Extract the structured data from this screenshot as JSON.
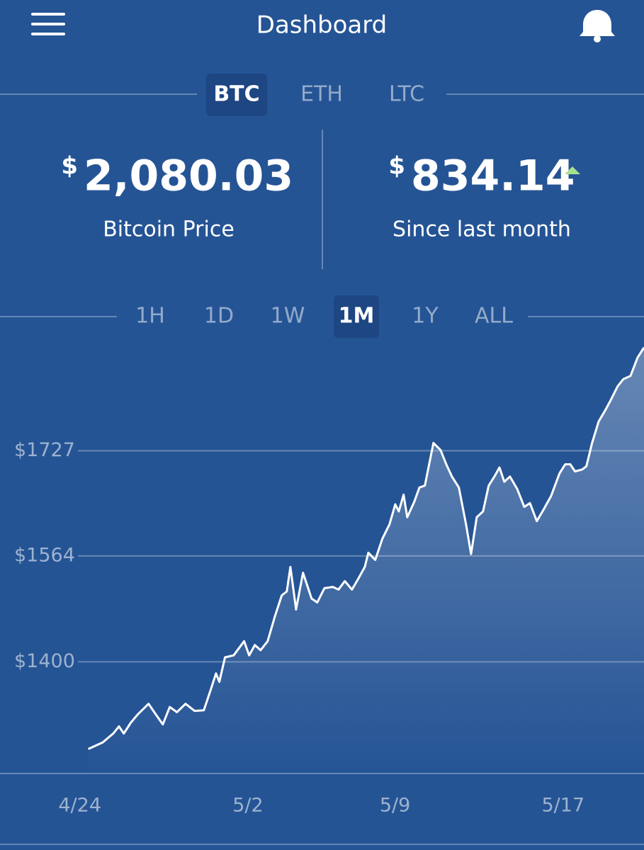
{
  "header": {
    "title": "Dashboard"
  },
  "currency_tabs": {
    "items": [
      "BTC",
      "ETH",
      "LTC"
    ],
    "selected_index": 0
  },
  "stats": [
    {
      "currency": "$",
      "value": "2,080.03",
      "label": "Bitcoin Price"
    },
    {
      "currency": "$",
      "value": "834.14",
      "label": "Since last month"
    }
  ],
  "range_tabs": {
    "items": [
      "1H",
      "1D",
      "1W",
      "1M",
      "1Y",
      "ALL"
    ],
    "selected_index": 3
  },
  "chart_data": {
    "type": "line",
    "color": "#ffffff",
    "grid": true,
    "x": [
      0.4,
      1.08,
      1.59,
      1.86,
      2.09,
      2.43,
      2.77,
      3.27,
      3.54,
      3.95,
      4.28,
      4.62,
      5.03,
      5.46,
      5.9,
      6.24,
      6.48,
      6.64,
      6.91,
      7.32,
      7.82,
      8.06,
      8.33,
      8.6,
      8.94,
      9.28,
      9.61,
      9.85,
      10.02,
      10.29,
      10.62,
      11.03,
      11.3,
      11.64,
      12.04,
      12.31,
      12.61,
      12.95,
      13.22,
      13.56,
      13.73,
      14.06,
      14.4,
      14.74,
      15.01,
      15.18,
      15.41,
      15.58,
      15.92,
      16.16,
      16.42,
      16.83,
      17.17,
      17.44,
      17.71,
      18.04,
      18.38,
      18.62,
      18.89,
      19.19,
      19.46,
      19.73,
      19.97,
      20.2,
      20.47,
      20.81,
      21.15,
      21.42,
      21.75,
      22.09,
      22.43,
      22.83,
      23.1,
      23.34,
      23.57,
      23.91,
      24.11,
      24.38,
      24.69,
      25.03,
      25.26,
      25.6,
      25.87,
      26.21,
      26.54,
      26.85
    ],
    "values": [
      1265,
      1275,
      1289,
      1300,
      1289,
      1306,
      1319,
      1335,
      1322,
      1303,
      1330,
      1322,
      1335,
      1324,
      1325,
      1358,
      1382,
      1369,
      1407,
      1410,
      1432,
      1410,
      1426,
      1418,
      1432,
      1470,
      1503,
      1509,
      1547,
      1481,
      1538,
      1498,
      1492,
      1514,
      1516,
      1512,
      1525,
      1512,
      1527,
      1547,
      1569,
      1558,
      1591,
      1613,
      1644,
      1633,
      1659,
      1624,
      1648,
      1670,
      1673,
      1739,
      1728,
      1706,
      1687,
      1670,
      1613,
      1567,
      1624,
      1633,
      1673,
      1687,
      1701,
      1679,
      1687,
      1668,
      1640,
      1646,
      1618,
      1637,
      1657,
      1692,
      1706,
      1706,
      1695,
      1698,
      1703,
      1739,
      1772,
      1791,
      1805,
      1827,
      1838,
      1843,
      1871,
      1887
    ],
    "xlim": [
      -3.8,
      26.85
    ],
    "xticks": [
      {
        "value": 0,
        "label": "4/24"
      },
      {
        "value": 8,
        "label": "5/2"
      },
      {
        "value": 15,
        "label": "5/9"
      },
      {
        "value": 23,
        "label": "5/17"
      }
    ],
    "ylim": [
      1227,
      1898
    ],
    "yticks": [
      {
        "value": 1400,
        "label": "$1400"
      },
      {
        "value": 1564,
        "label": "$1564"
      },
      {
        "value": 1727,
        "label": "$1727"
      }
    ]
  }
}
